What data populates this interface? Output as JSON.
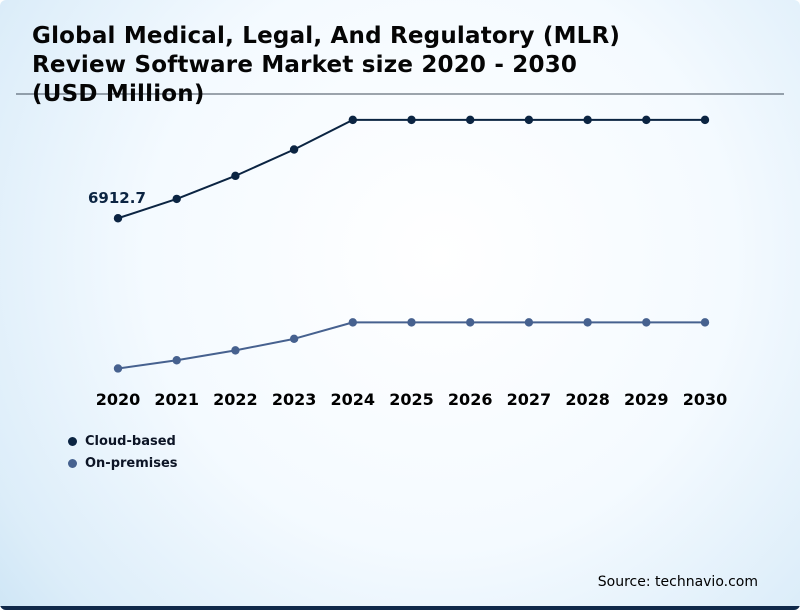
{
  "title": "Global Medical, Legal, And Regulatory (MLR) Review Software Market size 2020 - 2030 (USD Million)",
  "source": "Source: technavio.com",
  "chart_data": {
    "type": "line",
    "title": "Global Medical, Legal, And Regulatory (MLR) Review Software Market size 2020 - 2030 (USD Million)",
    "categories": [
      "2020",
      "2021",
      "2022",
      "2023",
      "2024",
      "2025",
      "2026",
      "2027",
      "2028",
      "2029",
      "2030"
    ],
    "series": [
      {
        "name": "Cloud-based",
        "key": "cloud-based",
        "color": "#0b2442",
        "values": [
          6912.7,
          7500,
          8200,
          9000,
          9900,
          9900,
          9900,
          9900,
          9900,
          9900,
          9900
        ]
      },
      {
        "name": "On-premises",
        "key": "on-premises",
        "color": "#46618f",
        "values": [
          2350,
          2600,
          2900,
          3250,
          3750,
          3750,
          3750,
          3750,
          3750,
          3750,
          3750
        ]
      }
    ],
    "annotation": "6912.7",
    "xlabel": "",
    "ylabel": "",
    "ylim": [
      2000,
      10200
    ],
    "grid": "single-top-gridline",
    "legend_position": "bottom-left"
  },
  "colors": {
    "background_center": "#ffffff",
    "background_edge": "#cfe6f6",
    "gridline": "#3f4b59",
    "bottom_bar": "#10294a",
    "title_text": "#050505",
    "axis_label_text": "#000000"
  }
}
